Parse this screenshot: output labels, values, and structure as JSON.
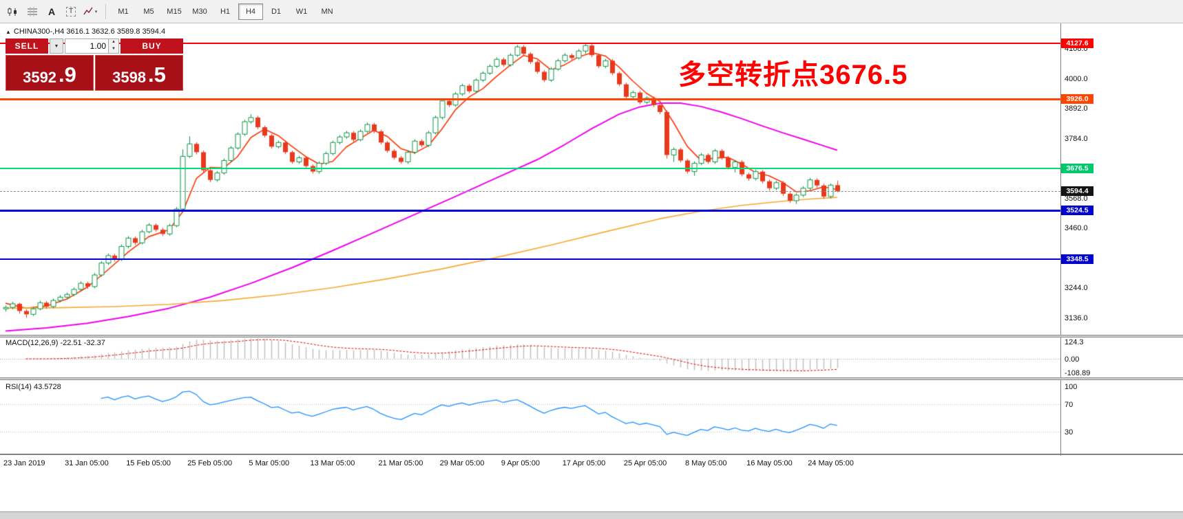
{
  "toolbar": {
    "icons": [
      {
        "name": "chart-type-icon",
        "glyph": "candlestick-shapes"
      },
      {
        "name": "grid-icon",
        "glyph": "grid-lines"
      },
      {
        "name": "cursor-tool-icon",
        "glyph": "A"
      },
      {
        "name": "text-tool-icon",
        "glyph": "T"
      },
      {
        "name": "indicators-icon",
        "glyph": "zigzag-arrow"
      }
    ],
    "dropdown_caret": "▾",
    "timeframes": [
      {
        "label": "M1",
        "active": false
      },
      {
        "label": "M5",
        "active": false
      },
      {
        "label": "M15",
        "active": false
      },
      {
        "label": "M30",
        "active": false
      },
      {
        "label": "H1",
        "active": false
      },
      {
        "label": "H4",
        "active": true
      },
      {
        "label": "D1",
        "active": false
      },
      {
        "label": "W1",
        "active": false
      },
      {
        "label": "MN",
        "active": false
      }
    ]
  },
  "symbol_header": {
    "collapse_icon": "▲",
    "text": "CHINA300-,H4  3616.1 3632.6 3589.8 3594.4"
  },
  "trade_panel": {
    "sell_label": "SELL",
    "buy_label": "BUY",
    "volume": "1.00",
    "bid_big": "3592",
    "bid_frac": ".9",
    "ask_big": "3598",
    "ask_frac": ".5",
    "red": "#c0121c",
    "red_dark": "#a81017",
    "spin_up": "▲",
    "spin_down": "▼",
    "combo_caret": "▼"
  },
  "annotation": {
    "text": "多空转折点3676.5",
    "color": "#ff0000"
  },
  "price_axis": {
    "ticks": [
      4108.0,
      4000.0,
      3892.0,
      3784.0,
      3568.0,
      3460.0,
      3244.0,
      3136.0
    ],
    "badges": [
      {
        "label": "4127.6",
        "price": 4127.6,
        "bg": "#ff0000"
      },
      {
        "label": "3926.0",
        "price": 3926.0,
        "bg": "#ff4500"
      },
      {
        "label": "3676.5",
        "price": 3676.5,
        "bg": "#00c96c"
      },
      {
        "label": "3594.4",
        "price": 3594.4,
        "bg": "#141414"
      },
      {
        "label": "3524.5",
        "price": 3524.5,
        "bg": "#0000cc"
      },
      {
        "label": "3348.5",
        "price": 3348.5,
        "bg": "#0000cc"
      }
    ]
  },
  "chart_data": {
    "type": "candlestick",
    "symbol": "CHINA300-",
    "timeframe": "H4",
    "ohlc_display": [
      3616.1,
      3632.6,
      3589.8,
      3594.4
    ],
    "candle_colors": {
      "up": "#0b9444",
      "up_fill": "#ffffff",
      "down": "#e8391d"
    },
    "candles": [
      [
        3170,
        3182,
        3160,
        3175
      ],
      [
        3175,
        3195,
        3168,
        3188
      ],
      [
        3188,
        3192,
        3152,
        3162
      ],
      [
        3162,
        3168,
        3138,
        3150
      ],
      [
        3150,
        3177,
        3144,
        3170
      ],
      [
        3170,
        3199,
        3164,
        3192
      ],
      [
        3192,
        3198,
        3170,
        3178
      ],
      [
        3178,
        3207,
        3172,
        3200
      ],
      [
        3200,
        3219,
        3193,
        3212
      ],
      [
        3212,
        3229,
        3205,
        3222
      ],
      [
        3222,
        3247,
        3216,
        3240
      ],
      [
        3240,
        3269,
        3234,
        3262
      ],
      [
        3262,
        3268,
        3242,
        3250
      ],
      [
        3250,
        3299,
        3244,
        3292
      ],
      [
        3292,
        3342,
        3286,
        3335
      ],
      [
        3335,
        3369,
        3328,
        3362
      ],
      [
        3362,
        3368,
        3340,
        3348
      ],
      [
        3348,
        3402,
        3342,
        3395
      ],
      [
        3395,
        3432,
        3388,
        3425
      ],
      [
        3425,
        3431,
        3400,
        3408
      ],
      [
        3408,
        3455,
        3402,
        3448
      ],
      [
        3448,
        3479,
        3442,
        3472
      ],
      [
        3472,
        3478,
        3448,
        3455
      ],
      [
        3455,
        3462,
        3432,
        3440
      ],
      [
        3440,
        3477,
        3434,
        3470
      ],
      [
        3470,
        3537,
        3464,
        3530
      ],
      [
        3530,
        3745,
        3520,
        3720
      ],
      [
        3720,
        3792,
        3714,
        3765
      ],
      [
        3765,
        3771,
        3727,
        3735
      ],
      [
        3735,
        3741,
        3662,
        3670
      ],
      [
        3670,
        3676,
        3627,
        3635
      ],
      [
        3635,
        3667,
        3628,
        3660
      ],
      [
        3660,
        3712,
        3654,
        3705
      ],
      [
        3705,
        3757,
        3699,
        3750
      ],
      [
        3750,
        3807,
        3744,
        3800
      ],
      [
        3800,
        3852,
        3794,
        3845
      ],
      [
        3845,
        3872,
        3838,
        3860
      ],
      [
        3860,
        3866,
        3818,
        3825
      ],
      [
        3825,
        3831,
        3788,
        3795
      ],
      [
        3795,
        3801,
        3748,
        3755
      ],
      [
        3755,
        3777,
        3748,
        3770
      ],
      [
        3770,
        3776,
        3728,
        3735
      ],
      [
        3735,
        3741,
        3693,
        3700
      ],
      [
        3700,
        3722,
        3693,
        3715
      ],
      [
        3715,
        3721,
        3678,
        3685
      ],
      [
        3685,
        3691,
        3658,
        3665
      ],
      [
        3665,
        3702,
        3658,
        3695
      ],
      [
        3695,
        3737,
        3688,
        3730
      ],
      [
        3730,
        3777,
        3724,
        3770
      ],
      [
        3770,
        3797,
        3763,
        3790
      ],
      [
        3790,
        3812,
        3783,
        3805
      ],
      [
        3805,
        3811,
        3773,
        3780
      ],
      [
        3780,
        3817,
        3774,
        3810
      ],
      [
        3810,
        3842,
        3804,
        3835
      ],
      [
        3835,
        3841,
        3803,
        3810
      ],
      [
        3810,
        3816,
        3763,
        3770
      ],
      [
        3770,
        3776,
        3733,
        3740
      ],
      [
        3740,
        3746,
        3708,
        3715
      ],
      [
        3715,
        3721,
        3693,
        3700
      ],
      [
        3700,
        3742,
        3693,
        3735
      ],
      [
        3735,
        3782,
        3728,
        3775
      ],
      [
        3775,
        3781,
        3753,
        3760
      ],
      [
        3760,
        3812,
        3754,
        3805
      ],
      [
        3805,
        3867,
        3799,
        3860
      ],
      [
        3860,
        3927,
        3853,
        3920
      ],
      [
        3920,
        3926,
        3898,
        3905
      ],
      [
        3905,
        3952,
        3899,
        3945
      ],
      [
        3945,
        3982,
        3938,
        3975
      ],
      [
        3975,
        3981,
        3948,
        3955
      ],
      [
        3955,
        4002,
        3948,
        3995
      ],
      [
        3995,
        4027,
        3989,
        4020
      ],
      [
        4020,
        4052,
        4014,
        4045
      ],
      [
        4045,
        4077,
        4039,
        4070
      ],
      [
        4070,
        4076,
        4043,
        4050
      ],
      [
        4050,
        4092,
        4044,
        4085
      ],
      [
        4085,
        4122,
        4079,
        4115
      ],
      [
        4115,
        4121,
        4083,
        4090
      ],
      [
        4090,
        4096,
        4053,
        4060
      ],
      [
        4060,
        4066,
        4018,
        4025
      ],
      [
        4025,
        4031,
        3988,
        3995
      ],
      [
        3995,
        4042,
        3989,
        4035
      ],
      [
        4035,
        4072,
        4029,
        4065
      ],
      [
        4065,
        4092,
        4058,
        4085
      ],
      [
        4085,
        4091,
        4068,
        4075
      ],
      [
        4075,
        4107,
        4069,
        4100
      ],
      [
        4100,
        4127.6,
        4090,
        4120
      ],
      [
        4120,
        4126,
        4078,
        4085
      ],
      [
        4085,
        4091,
        4038,
        4045
      ],
      [
        4045,
        4072,
        4038,
        4065
      ],
      [
        4065,
        4071,
        4013,
        4020
      ],
      [
        4020,
        4026,
        3973,
        3980
      ],
      [
        3980,
        3986,
        3928,
        3935
      ],
      [
        3935,
        3957,
        3928,
        3950
      ],
      [
        3950,
        3956,
        3908,
        3915
      ],
      [
        3915,
        3937,
        3908,
        3930
      ],
      [
        3930,
        3936,
        3898,
        3905
      ],
      [
        3905,
        3911,
        3872,
        3880
      ],
      [
        3880,
        3886,
        3712,
        3725
      ],
      [
        3725,
        3752,
        3700,
        3745
      ],
      [
        3745,
        3751,
        3698,
        3705
      ],
      [
        3705,
        3711,
        3658,
        3665
      ],
      [
        3665,
        3702,
        3650,
        3695
      ],
      [
        3695,
        3732,
        3688,
        3725
      ],
      [
        3725,
        3731,
        3693,
        3700
      ],
      [
        3700,
        3747,
        3693,
        3740
      ],
      [
        3740,
        3746,
        3708,
        3715
      ],
      [
        3715,
        3721,
        3673,
        3680
      ],
      [
        3680,
        3707,
        3662,
        3700
      ],
      [
        3700,
        3706,
        3648,
        3655
      ],
      [
        3655,
        3661,
        3632,
        3640
      ],
      [
        3640,
        3672,
        3633,
        3665
      ],
      [
        3665,
        3671,
        3622,
        3630
      ],
      [
        3630,
        3636,
        3597,
        3605
      ],
      [
        3605,
        3632,
        3598,
        3625
      ],
      [
        3625,
        3631,
        3577,
        3585
      ],
      [
        3585,
        3591,
        3552,
        3560
      ],
      [
        3560,
        3587,
        3548,
        3580
      ],
      [
        3580,
        3612,
        3573,
        3605
      ],
      [
        3605,
        3642,
        3598,
        3635
      ],
      [
        3635,
        3641,
        3607,
        3615
      ],
      [
        3615,
        3621,
        3567,
        3575
      ],
      [
        3575,
        3622,
        3568,
        3616.1
      ],
      [
        3616.1,
        3632.6,
        3589.8,
        3594.4
      ]
    ],
    "x_tick_indices": [
      0,
      9,
      18,
      27,
      36,
      45,
      55,
      64,
      73,
      82,
      91,
      100,
      109,
      118
    ],
    "x_tick_labels": [
      "23 Jan 2019",
      "31 Jan 05:00",
      "15 Feb 05:00",
      "25 Feb 05:00",
      "5 Mar 05:00",
      "13 Mar 05:00",
      "21 Mar 05:00",
      "29 Mar 05:00",
      "9 Apr 05:00",
      "17 Apr 05:00",
      "25 Apr 05:00",
      "8 May 05:00",
      "16 May 05:00",
      "24 May 05:00"
    ],
    "hlines": [
      {
        "price": 4127.6,
        "color": "#ff0000",
        "width": 2
      },
      {
        "price": 3926.0,
        "color": "#ff4500",
        "width": 3
      },
      {
        "price": 3676.5,
        "color": "#00dc78",
        "width": 2
      },
      {
        "price": 3524.5,
        "color": "#0000dd",
        "width": 3
      },
      {
        "price": 3348.5,
        "color": "#0000dd",
        "width": 2
      }
    ],
    "current_price": {
      "price": 3594.4
    },
    "ma_series": [
      {
        "name": "ma-fast-red",
        "color": "#ff3300",
        "width": 1.6,
        "points": [
          [
            0,
            3190
          ],
          [
            3,
            3172
          ],
          [
            6,
            3180
          ],
          [
            9,
            3205
          ],
          [
            12,
            3248
          ],
          [
            15,
            3310
          ],
          [
            18,
            3375
          ],
          [
            21,
            3430
          ],
          [
            24,
            3455
          ],
          [
            26,
            3520
          ],
          [
            28,
            3640
          ],
          [
            30,
            3680
          ],
          [
            32,
            3678
          ],
          [
            34,
            3718
          ],
          [
            36,
            3788
          ],
          [
            38,
            3818
          ],
          [
            40,
            3795
          ],
          [
            42,
            3756
          ],
          [
            44,
            3720
          ],
          [
            46,
            3692
          ],
          [
            48,
            3702
          ],
          [
            50,
            3754
          ],
          [
            52,
            3784
          ],
          [
            54,
            3814
          ],
          [
            56,
            3792
          ],
          [
            58,
            3748
          ],
          [
            60,
            3732
          ],
          [
            62,
            3758
          ],
          [
            64,
            3818
          ],
          [
            66,
            3888
          ],
          [
            68,
            3934
          ],
          [
            70,
            3964
          ],
          [
            72,
            4008
          ],
          [
            74,
            4048
          ],
          [
            76,
            4084
          ],
          [
            78,
            4072
          ],
          [
            80,
            4032
          ],
          [
            82,
            4050
          ],
          [
            84,
            4078
          ],
          [
            86,
            4094
          ],
          [
            88,
            4082
          ],
          [
            90,
            4042
          ],
          [
            92,
            3992
          ],
          [
            94,
            3948
          ],
          [
            96,
            3918
          ],
          [
            98,
            3842
          ],
          [
            100,
            3756
          ],
          [
            102,
            3706
          ],
          [
            104,
            3714
          ],
          [
            106,
            3716
          ],
          [
            108,
            3692
          ],
          [
            110,
            3662
          ],
          [
            112,
            3650
          ],
          [
            114,
            3626
          ],
          [
            116,
            3592
          ],
          [
            118,
            3596
          ],
          [
            120,
            3610
          ],
          [
            122,
            3600
          ]
        ]
      },
      {
        "name": "ma-mid-magenta",
        "color": "#ee00ee",
        "width": 2,
        "points": [
          [
            0,
            3090
          ],
          [
            6,
            3101
          ],
          [
            12,
            3118
          ],
          [
            18,
            3142
          ],
          [
            24,
            3172
          ],
          [
            30,
            3212
          ],
          [
            36,
            3262
          ],
          [
            42,
            3318
          ],
          [
            48,
            3380
          ],
          [
            54,
            3445
          ],
          [
            60,
            3510
          ],
          [
            66,
            3575
          ],
          [
            72,
            3642
          ],
          [
            78,
            3708
          ],
          [
            82,
            3762
          ],
          [
            86,
            3820
          ],
          [
            90,
            3872
          ],
          [
            93,
            3898
          ],
          [
            96,
            3912
          ],
          [
            99,
            3912
          ],
          [
            102,
            3900
          ],
          [
            105,
            3880
          ],
          [
            108,
            3856
          ],
          [
            111,
            3830
          ],
          [
            114,
            3805
          ],
          [
            117,
            3782
          ],
          [
            120,
            3758
          ],
          [
            122,
            3742
          ]
        ]
      },
      {
        "name": "ma-slow-orange",
        "color": "#f7a831",
        "width": 1.6,
        "points": [
          [
            0,
            3172
          ],
          [
            8,
            3174
          ],
          [
            16,
            3178
          ],
          [
            24,
            3186
          ],
          [
            32,
            3200
          ],
          [
            40,
            3220
          ],
          [
            48,
            3246
          ],
          [
            56,
            3278
          ],
          [
            64,
            3314
          ],
          [
            72,
            3355
          ],
          [
            80,
            3400
          ],
          [
            88,
            3448
          ],
          [
            96,
            3495
          ],
          [
            102,
            3522
          ],
          [
            108,
            3543
          ],
          [
            114,
            3558
          ],
          [
            118,
            3566
          ],
          [
            122,
            3572
          ]
        ]
      }
    ],
    "macd": {
      "label": "MACD(12,26,9) -22.51 -32.37",
      "params": [
        12,
        26,
        9
      ],
      "values_display": [
        -22.51,
        -32.37
      ],
      "axis_labels": [
        "124.3",
        "0.00",
        "-108.89"
      ],
      "hist_color": "#bdbdbd",
      "signal_color": "#e00000"
    },
    "rsi": {
      "label": "RSI(14) 43.5728",
      "period": 14,
      "value_display": 43.5728,
      "axis_labels": [
        "100",
        "70",
        "30"
      ],
      "levels": [
        70,
        30
      ],
      "line_color": "#1e90ff"
    }
  }
}
